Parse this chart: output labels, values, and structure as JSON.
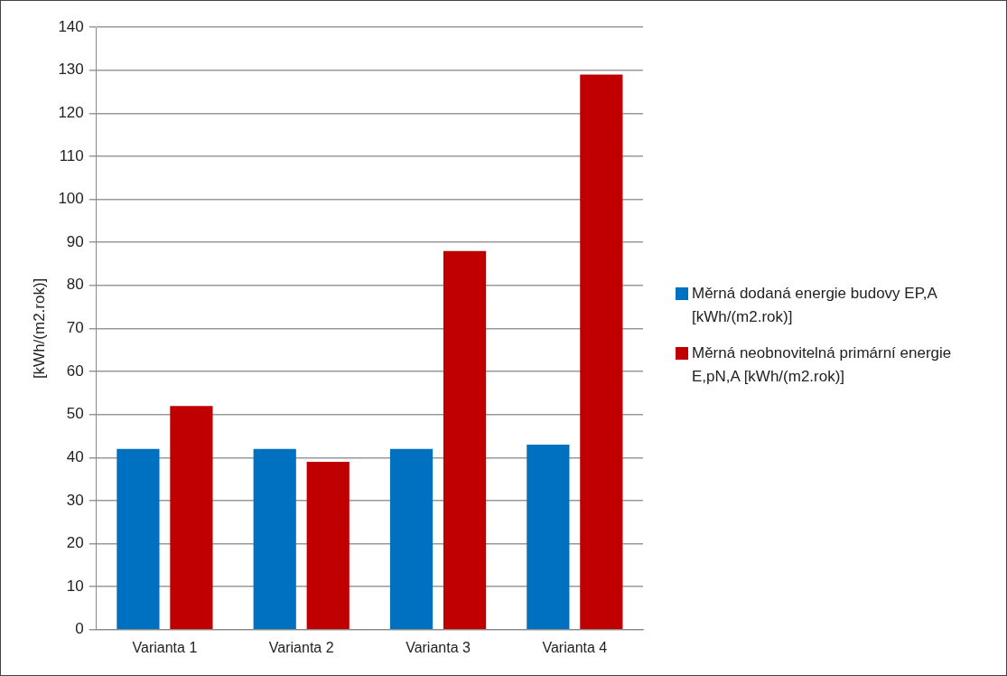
{
  "chart_data": {
    "type": "bar",
    "ylabel": "[kWh/(m2.rok)]",
    "categories": [
      "Varianta 1",
      "Varianta 2",
      "Varianta 3",
      "Varianta 4"
    ],
    "series": [
      {
        "name": "Měrná dodaná energie budovy EP,A [kWh/(m2.rok)]",
        "color": "#0070c0",
        "values": [
          42,
          42,
          42,
          43
        ]
      },
      {
        "name": "Měrná neobnovitelná primární energie E,pN,A [kWh/(m2.rok)]",
        "color": "#c00000",
        "values": [
          52,
          39,
          88,
          129
        ]
      }
    ],
    "ylim": [
      0,
      140
    ],
    "yticks": [
      0,
      10,
      20,
      30,
      40,
      50,
      60,
      70,
      80,
      90,
      100,
      110,
      120,
      130,
      140
    ],
    "grid": "y",
    "legend": "right"
  }
}
